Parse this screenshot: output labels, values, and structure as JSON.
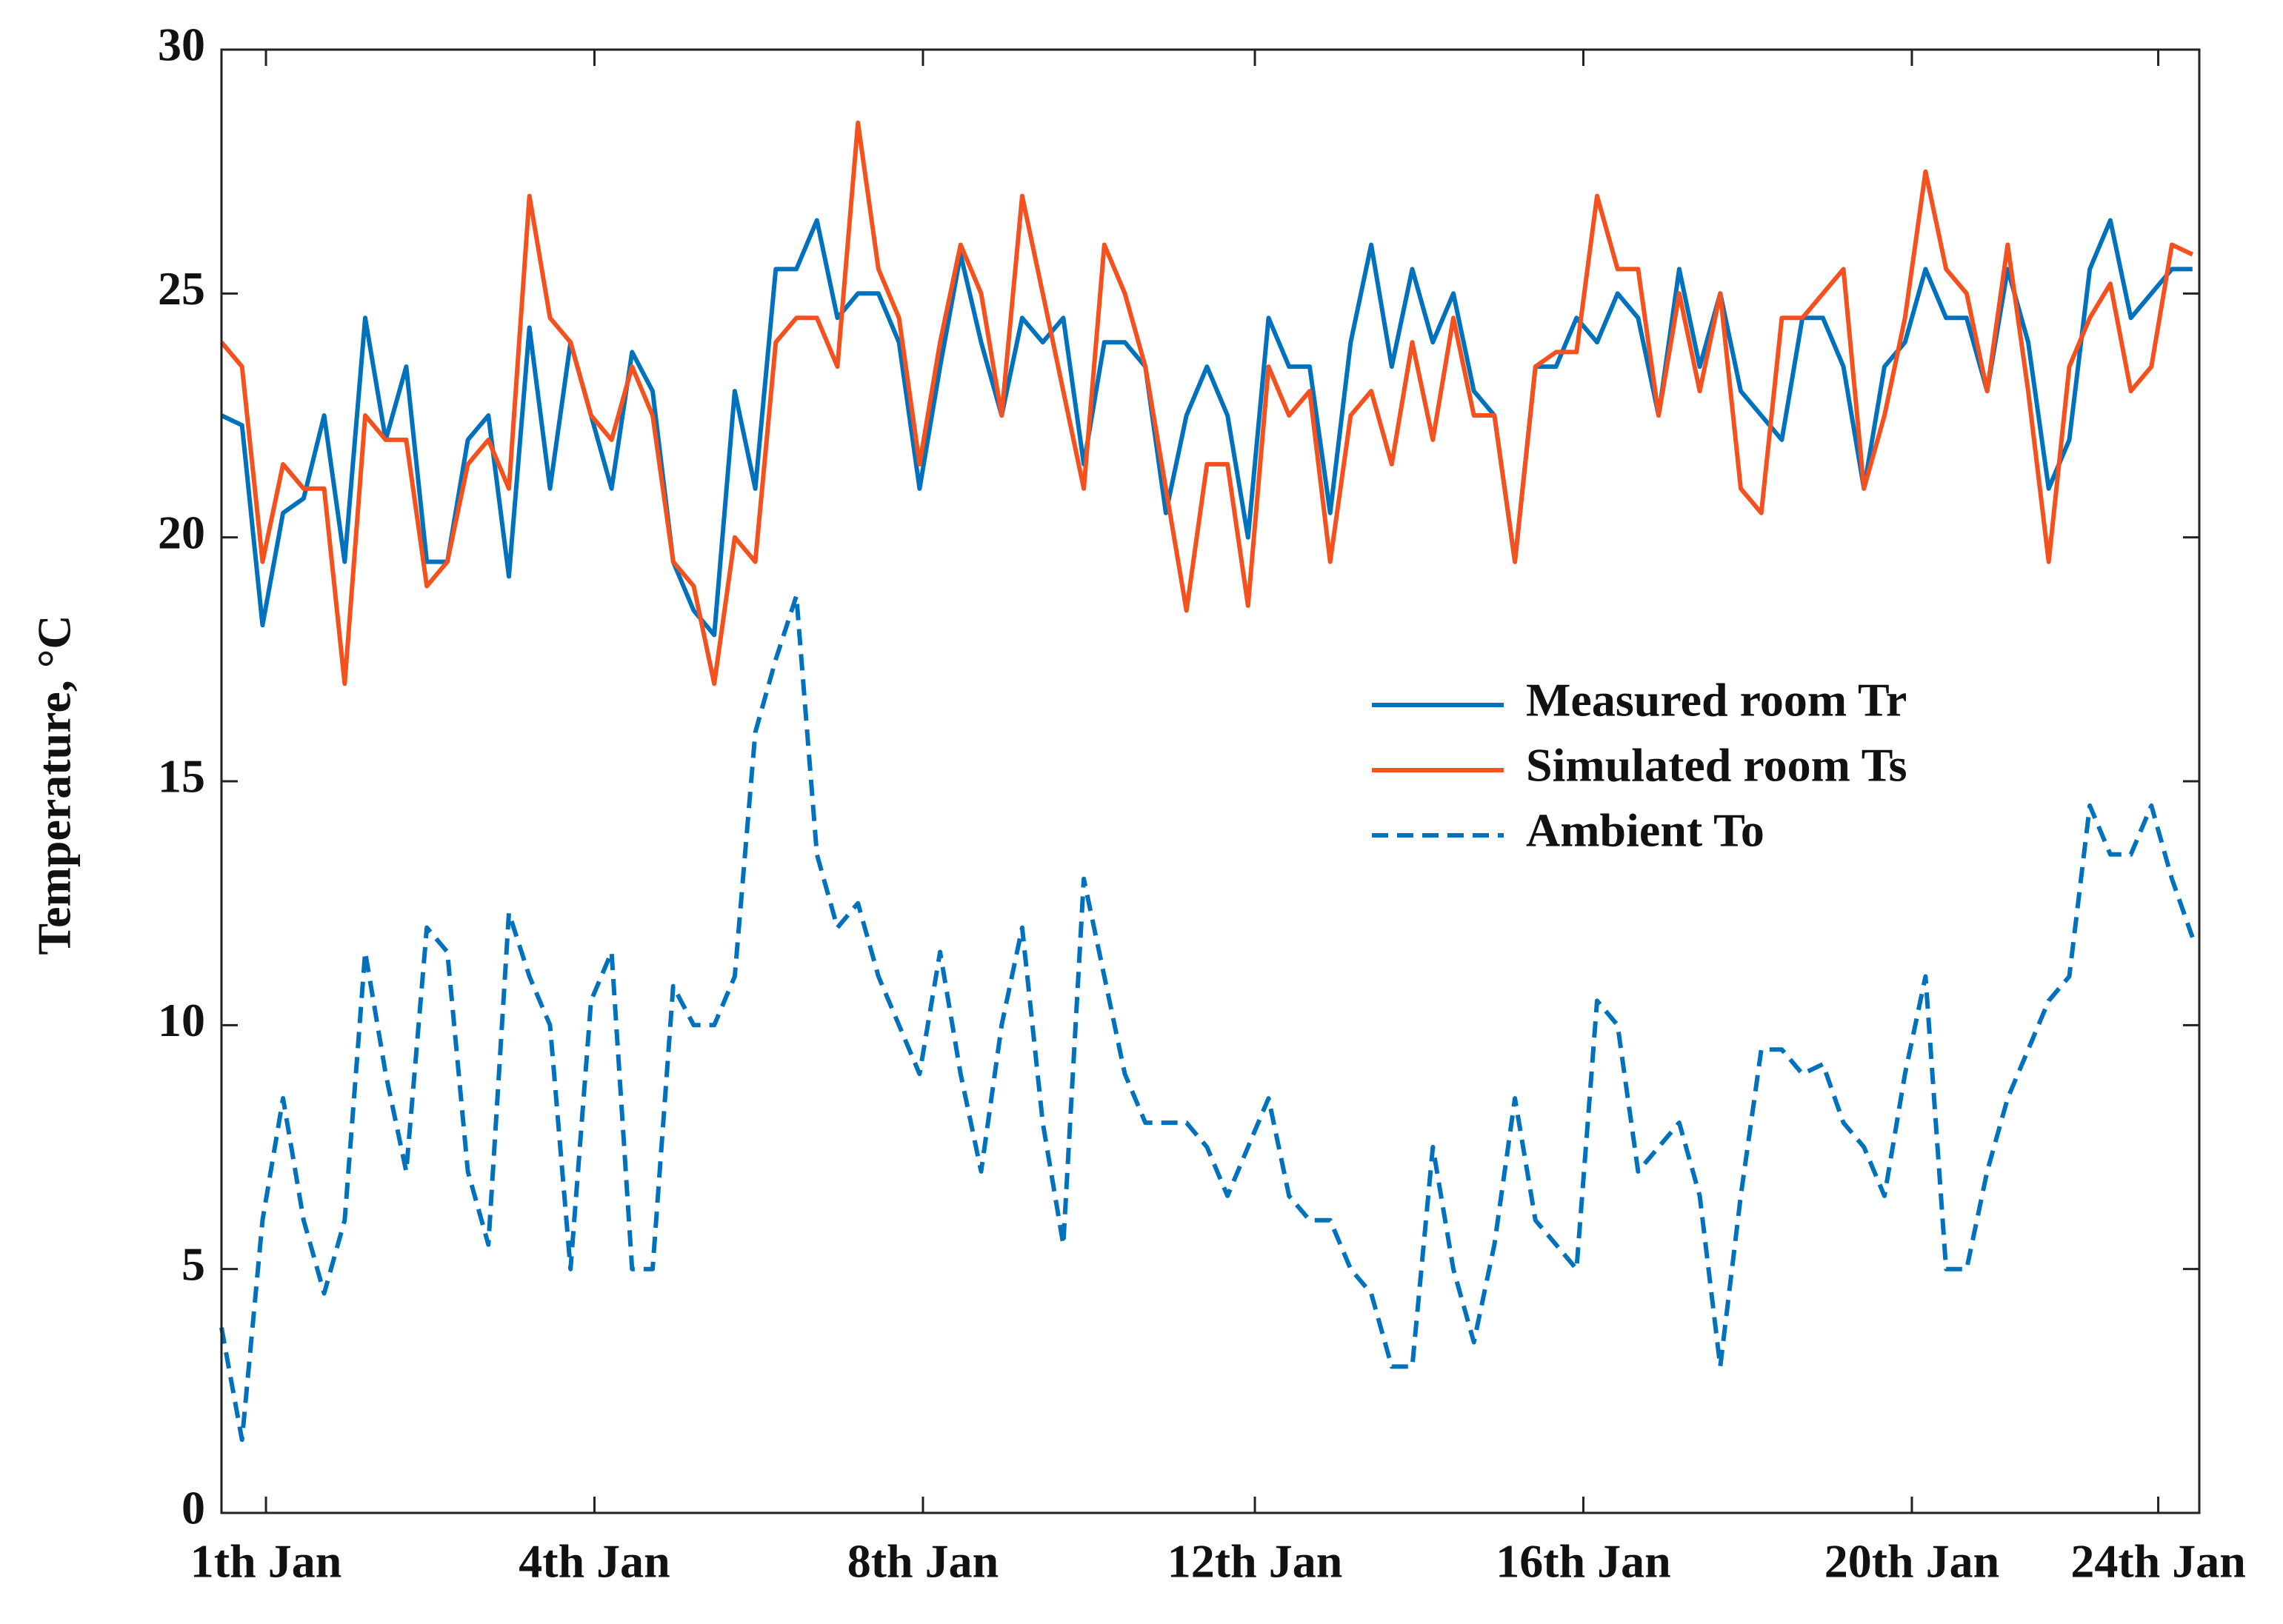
{
  "chart_data": {
    "type": "line",
    "ylabel": "Temperature, °C",
    "x": [
      0,
      6,
      12,
      18,
      24,
      30,
      36,
      42,
      48,
      54,
      60,
      66,
      72,
      78,
      84,
      90,
      96,
      102,
      108,
      114,
      120,
      126,
      132,
      138,
      144,
      150,
      156,
      162,
      168,
      174,
      180,
      186,
      192,
      198,
      204,
      210,
      216,
      222,
      228,
      234,
      240,
      246,
      252,
      258,
      264,
      270,
      276,
      282,
      288,
      294,
      300,
      306,
      312,
      318,
      324,
      330,
      336,
      342,
      348,
      354,
      360,
      366,
      372,
      378,
      384,
      390,
      396,
      402,
      408,
      414,
      420,
      426,
      432,
      438,
      444,
      450,
      456,
      462,
      468,
      474,
      480,
      486,
      492,
      498,
      504,
      510,
      516,
      522,
      528,
      534,
      540,
      546,
      552,
      558,
      564,
      570,
      576
    ],
    "series": [
      {
        "name": "Measured room Tr",
        "color": "#0072BD",
        "linestyle": "solid",
        "values": [
          22.5,
          22.3,
          18.2,
          20.5,
          20.8,
          22.5,
          19.5,
          24.5,
          22,
          23.5,
          19.5,
          19.5,
          22,
          22.5,
          19.2,
          24.3,
          21,
          24,
          22.5,
          21,
          23.8,
          23,
          19.5,
          18.5,
          18,
          23,
          21,
          25.5,
          25.5,
          26.5,
          24.5,
          25,
          25,
          24,
          21,
          23.5,
          25.8,
          24,
          22.5,
          24.5,
          24,
          24.5,
          21.5,
          24,
          24,
          23.5,
          20.5,
          22.5,
          23.5,
          22.5,
          20,
          24.5,
          23.5,
          23.5,
          20.5,
          24,
          26,
          23.5,
          25.5,
          24,
          25,
          23,
          22.5,
          19.5,
          23.5,
          23.5,
          24.5,
          24,
          25,
          24.5,
          22.5,
          25.5,
          23.5,
          25,
          23,
          22.5,
          22,
          24.5,
          24.5,
          23.5,
          21,
          23.5,
          24,
          25.5,
          24.5,
          24.5,
          23,
          25.5,
          24,
          21,
          22,
          25.5,
          26.5,
          24.5,
          25,
          25.5,
          25.5
        ]
      },
      {
        "name": "Simulated room Ts",
        "color": "#F4511E",
        "linestyle": "solid",
        "values": [
          24,
          23.5,
          19.5,
          21.5,
          21,
          21,
          17,
          22.5,
          22,
          22,
          19,
          19.5,
          21.5,
          22,
          21,
          27,
          24.5,
          24,
          22.5,
          22,
          23.5,
          22.5,
          19.5,
          19,
          17,
          20,
          19.5,
          24,
          24.5,
          24.5,
          23.5,
          28.5,
          25.5,
          24.5,
          21.5,
          24,
          26,
          25,
          22.5,
          27,
          25,
          23,
          21,
          26,
          25,
          23.5,
          21,
          18.5,
          21.5,
          21.5,
          18.6,
          23.5,
          22.5,
          23,
          19.5,
          22.5,
          23,
          21.5,
          24,
          22,
          24.5,
          22.5,
          22.5,
          19.5,
          23.5,
          23.8,
          23.8,
          27,
          25.5,
          25.5,
          22.5,
          25,
          23,
          25,
          21,
          20.5,
          24.5,
          24.5,
          25,
          25.5,
          21,
          22.5,
          24.5,
          27.5,
          25.5,
          25,
          23,
          26,
          23,
          19.5,
          23.5,
          24.5,
          25.2,
          23,
          23.5,
          26,
          25.8
        ]
      },
      {
        "name": "Ambient To",
        "color": "#0072BD",
        "linestyle": "dashed",
        "values": [
          3.8,
          1.5,
          6,
          8.5,
          6,
          4.5,
          6,
          11.5,
          9,
          7,
          12,
          11.5,
          7,
          5.5,
          12.3,
          11,
          10,
          5,
          10.5,
          11.5,
          5,
          5,
          10.8,
          10,
          10,
          11,
          16,
          17.5,
          18.8,
          13.5,
          12,
          12.5,
          11,
          10,
          9,
          11.5,
          9,
          7,
          10,
          12,
          8,
          5.5,
          13,
          11,
          9,
          8,
          8,
          8,
          7.5,
          6.5,
          7.5,
          8.5,
          6.5,
          6,
          6,
          5,
          4.5,
          3,
          3,
          7.5,
          5,
          3.5,
          5.5,
          8.5,
          6,
          5.5,
          5,
          10.5,
          10,
          7,
          7.5,
          8,
          6.5,
          3,
          6.5,
          9.5,
          9.5,
          9,
          9.2,
          8,
          7.5,
          6.5,
          9,
          11,
          5,
          5,
          7,
          8.5,
          9.5,
          10.5,
          11,
          14.5,
          13.5,
          13.5,
          14.5,
          13,
          11.8
        ]
      }
    ],
    "xlim": [
      0,
      578
    ],
    "xticks": [
      {
        "value": 13,
        "label": "1th Jan"
      },
      {
        "value": 109,
        "label": "4th Jan"
      },
      {
        "value": 205,
        "label": "8th Jan"
      },
      {
        "value": 302,
        "label": "12th Jan"
      },
      {
        "value": 398,
        "label": "16th Jan"
      },
      {
        "value": 494,
        "label": "20th Jan"
      },
      {
        "value": 566,
        "label": "24th Jan"
      }
    ],
    "ylim": [
      0,
      30
    ],
    "yticks": [
      0,
      5,
      10,
      15,
      20,
      25,
      30
    ],
    "grid": false,
    "legend": "right"
  }
}
